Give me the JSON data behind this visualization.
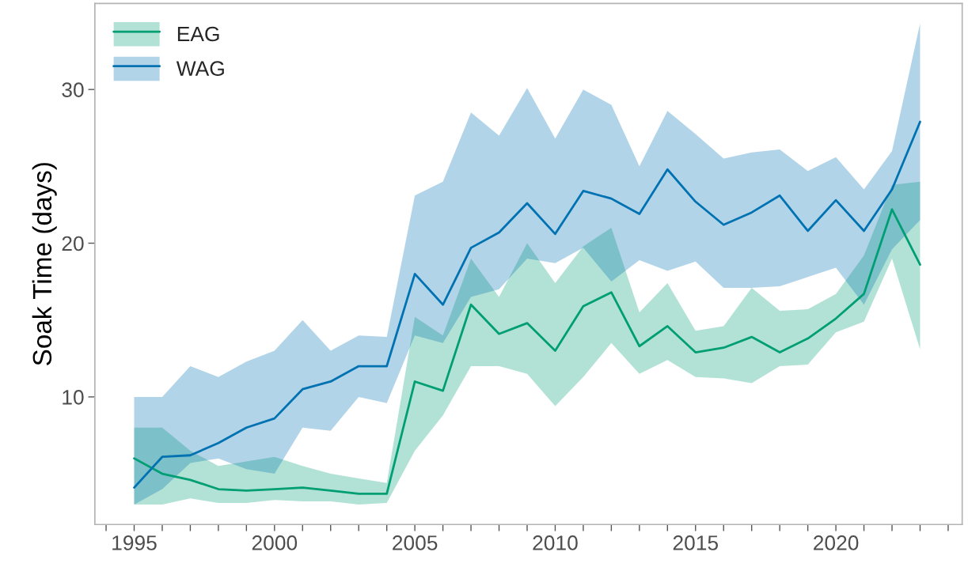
{
  "chart_data": {
    "type": "line",
    "ylabel": "Soak Time (days)",
    "x": [
      1995,
      1996,
      1997,
      1998,
      1999,
      2000,
      2001,
      2002,
      2003,
      2004,
      2005,
      2006,
      2007,
      2008,
      2009,
      2010,
      2011,
      2012,
      2013,
      2014,
      2015,
      2016,
      2017,
      2018,
      2019,
      2020,
      2021,
      2022,
      2023
    ],
    "series": [
      {
        "name": "EAG",
        "color": "#009e73",
        "values": [
          6.0,
          5.0,
          4.6,
          4.0,
          3.9,
          4.0,
          4.1,
          3.9,
          3.7,
          3.7,
          11.0,
          10.4,
          16.0,
          14.1,
          14.8,
          13.0,
          15.9,
          16.8,
          13.3,
          14.6,
          12.9,
          13.2,
          13.9,
          12.9,
          13.8,
          15.1,
          16.7,
          22.2,
          18.6
        ],
        "lower": [
          3.0,
          3.0,
          3.4,
          3.1,
          3.1,
          3.3,
          3.2,
          3.2,
          3.0,
          3.1,
          6.5,
          8.8,
          12.0,
          12.0,
          11.5,
          9.4,
          11.3,
          13.5,
          11.5,
          12.4,
          11.3,
          11.2,
          10.9,
          12.0,
          12.1,
          14.2,
          14.9,
          19.0,
          13.1
        ],
        "upper": [
          8.0,
          8.0,
          6.5,
          5.5,
          5.8,
          6.1,
          5.5,
          5.0,
          4.7,
          4.4,
          15.2,
          14.0,
          19.0,
          16.5,
          20.0,
          17.4,
          19.8,
          21.0,
          15.5,
          17.4,
          14.3,
          14.6,
          17.1,
          15.6,
          15.7,
          16.7,
          19.2,
          23.8,
          24.0
        ]
      },
      {
        "name": "WAG",
        "color": "#0072b2",
        "values": [
          4.1,
          6.1,
          6.2,
          7.0,
          8.0,
          8.6,
          10.5,
          11.0,
          12.0,
          12.0,
          18.0,
          16.0,
          19.7,
          20.7,
          22.6,
          20.6,
          23.4,
          22.9,
          21.9,
          24.8,
          22.7,
          21.2,
          22.0,
          23.1,
          20.8,
          22.8,
          20.8,
          23.5,
          27.9
        ],
        "lower": [
          3.0,
          4.0,
          5.7,
          6.0,
          5.3,
          5.0,
          8.0,
          7.8,
          10.0,
          9.6,
          14.0,
          13.5,
          16.5,
          17.0,
          19.0,
          18.7,
          19.7,
          17.5,
          18.9,
          18.2,
          18.8,
          17.1,
          17.1,
          17.2,
          17.8,
          18.4,
          16.0,
          19.6,
          21.5
        ],
        "upper": [
          10.0,
          10.0,
          12.0,
          11.3,
          12.3,
          13.0,
          15.0,
          13.0,
          14.0,
          13.9,
          23.1,
          24.0,
          28.5,
          27.0,
          30.1,
          26.8,
          30.0,
          29.0,
          25.0,
          28.6,
          27.1,
          25.5,
          25.9,
          26.1,
          24.7,
          25.6,
          23.5,
          26.0,
          34.3
        ]
      }
    ],
    "xlim": [
      1993.6,
      2024.5
    ],
    "ylim": [
      1.7,
      35.6
    ],
    "xticks": [
      {
        "value": 1994,
        "label": null
      },
      1995,
      {
        "value": 1996,
        "label": null
      },
      {
        "value": 1997,
        "label": null
      },
      {
        "value": 1998,
        "label": null
      },
      {
        "value": 1999,
        "label": null
      },
      2000,
      {
        "value": 2001,
        "label": null
      },
      {
        "value": 2002,
        "label": null
      },
      {
        "value": 2003,
        "label": null
      },
      {
        "value": 2004,
        "label": null
      },
      2005,
      {
        "value": 2006,
        "label": null
      },
      {
        "value": 2007,
        "label": null
      },
      {
        "value": 2008,
        "label": null
      },
      {
        "value": 2009,
        "label": null
      },
      2010,
      {
        "value": 2011,
        "label": null
      },
      {
        "value": 2012,
        "label": null
      },
      {
        "value": 2013,
        "label": null
      },
      {
        "value": 2014,
        "label": null
      },
      2015,
      {
        "value": 2016,
        "label": null
      },
      {
        "value": 2017,
        "label": null
      },
      {
        "value": 2018,
        "label": null
      },
      {
        "value": 2019,
        "label": null
      },
      2020,
      {
        "value": 2021,
        "label": null
      },
      {
        "value": 2022,
        "label": null
      },
      {
        "value": 2023,
        "label": null
      },
      {
        "value": 2024,
        "label": null
      }
    ],
    "yticks": [
      10,
      20,
      30
    ],
    "legend": "top left",
    "grid": false,
    "line_style": "solid"
  }
}
